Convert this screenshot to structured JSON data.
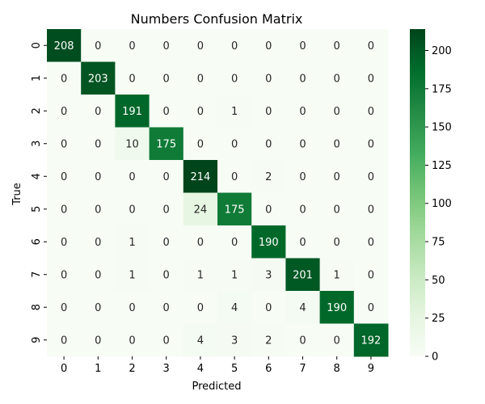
{
  "chart_data": {
    "type": "heatmap",
    "title": "Numbers Confusion Matrix",
    "xlabel": "Predicted",
    "ylabel": "True",
    "x_categories": [
      "0",
      "1",
      "2",
      "3",
      "4",
      "5",
      "6",
      "7",
      "8",
      "9"
    ],
    "y_categories": [
      "0",
      "1",
      "2",
      "3",
      "4",
      "5",
      "6",
      "7",
      "8",
      "9"
    ],
    "values": [
      [
        208,
        0,
        0,
        0,
        0,
        0,
        0,
        0,
        0,
        0
      ],
      [
        0,
        203,
        0,
        0,
        0,
        0,
        0,
        0,
        0,
        0
      ],
      [
        0,
        0,
        191,
        0,
        0,
        1,
        0,
        0,
        0,
        0
      ],
      [
        0,
        0,
        10,
        175,
        0,
        0,
        0,
        0,
        0,
        0
      ],
      [
        0,
        0,
        0,
        0,
        214,
        0,
        2,
        0,
        0,
        0
      ],
      [
        0,
        0,
        0,
        0,
        24,
        175,
        0,
        0,
        0,
        0
      ],
      [
        0,
        0,
        1,
        0,
        0,
        0,
        190,
        0,
        0,
        0
      ],
      [
        0,
        0,
        1,
        0,
        1,
        1,
        3,
        201,
        1,
        0
      ],
      [
        0,
        0,
        0,
        0,
        0,
        4,
        0,
        4,
        190,
        0
      ],
      [
        0,
        0,
        0,
        0,
        4,
        3,
        2,
        0,
        0,
        192
      ]
    ],
    "colorbar": {
      "min": 0,
      "max": 214,
      "ticks": [
        0,
        25,
        50,
        75,
        100,
        125,
        150,
        175,
        200
      ]
    },
    "colormap": "Greens",
    "colors": {
      "low": "#f7fcf5",
      "high": "#00441b"
    }
  }
}
